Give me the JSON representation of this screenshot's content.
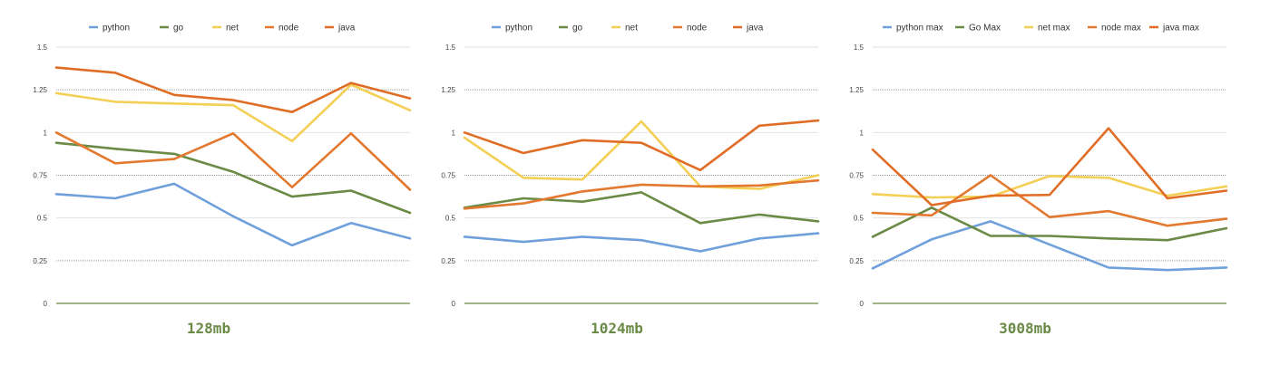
{
  "chart_data": [
    {
      "type": "line",
      "title": "128mb",
      "xlabel": "",
      "ylabel": "",
      "ylim": [
        0,
        1.5
      ],
      "yticks": [
        "0",
        "0.25",
        "0.5",
        "0.75",
        "1",
        "1.25",
        "1.5"
      ],
      "grid": true,
      "legend_position": "top",
      "series": [
        {
          "name": "python",
          "color": "#6fa0dc",
          "values": [
            0.64,
            0.615,
            0.7,
            0.51,
            0.34,
            0.47,
            0.38
          ]
        },
        {
          "name": "go",
          "color": "#6a8a45",
          "values": [
            0.94,
            0.905,
            0.875,
            0.77,
            0.625,
            0.66,
            0.53
          ]
        },
        {
          "name": "net",
          "color": "#f4cf55",
          "values": [
            1.23,
            1.18,
            1.17,
            1.16,
            0.95,
            1.28,
            1.13
          ]
        },
        {
          "name": "node",
          "color": "#e3782f",
          "values": [
            1.0,
            0.82,
            0.845,
            0.995,
            0.68,
            0.995,
            0.665
          ]
        },
        {
          "name": "java",
          "color": "#e06d26",
          "values": [
            1.38,
            1.35,
            1.22,
            1.19,
            1.12,
            1.29,
            1.2
          ]
        }
      ]
    },
    {
      "type": "line",
      "title": "1024mb",
      "xlabel": "",
      "ylabel": "",
      "ylim": [
        0,
        1.5
      ],
      "yticks": [
        "0",
        "0.25",
        "0.5",
        "0.75",
        "1",
        "1.25",
        "1.5"
      ],
      "grid": true,
      "legend_position": "top",
      "series": [
        {
          "name": "python",
          "color": "#6fa0dc",
          "values": [
            0.39,
            0.36,
            0.39,
            0.37,
            0.305,
            0.38,
            0.41
          ]
        },
        {
          "name": "go",
          "color": "#6a8a45",
          "values": [
            0.56,
            0.615,
            0.595,
            0.65,
            0.47,
            0.52,
            0.48
          ]
        },
        {
          "name": "net",
          "color": "#f4cf55",
          "values": [
            0.97,
            0.735,
            0.725,
            1.065,
            0.685,
            0.67,
            0.75
          ]
        },
        {
          "name": "node",
          "color": "#e3782f",
          "values": [
            0.555,
            0.585,
            0.655,
            0.695,
            0.685,
            0.69,
            0.72
          ]
        },
        {
          "name": "java",
          "color": "#e06d26",
          "values": [
            1.0,
            0.88,
            0.955,
            0.94,
            0.78,
            1.04,
            1.07
          ]
        }
      ]
    },
    {
      "type": "line",
      "title": "3008mb",
      "xlabel": "",
      "ylabel": "",
      "ylim": [
        0,
        1.5
      ],
      "yticks": [
        "0",
        "0.25",
        "0.5",
        "0.75",
        "1",
        "1.25",
        "1.5"
      ],
      "grid": true,
      "legend_position": "top",
      "series": [
        {
          "name": "python max",
          "color": "#6fa0dc",
          "values": [
            0.205,
            0.375,
            0.48,
            0.345,
            0.21,
            0.195,
            0.21
          ]
        },
        {
          "name": "Go Max",
          "color": "#6a8a45",
          "values": [
            0.39,
            0.56,
            0.395,
            0.395,
            0.38,
            0.37,
            0.44
          ]
        },
        {
          "name": "net max",
          "color": "#f4cf55",
          "values": [
            0.64,
            0.62,
            0.625,
            0.745,
            0.735,
            0.63,
            0.685
          ]
        },
        {
          "name": "node max",
          "color": "#e3782f",
          "values": [
            0.53,
            0.515,
            0.75,
            0.505,
            0.54,
            0.455,
            0.495
          ]
        },
        {
          "name": "java max",
          "color": "#e06d26",
          "values": [
            0.9,
            0.575,
            0.63,
            0.635,
            1.025,
            0.615,
            0.66
          ]
        }
      ]
    }
  ]
}
